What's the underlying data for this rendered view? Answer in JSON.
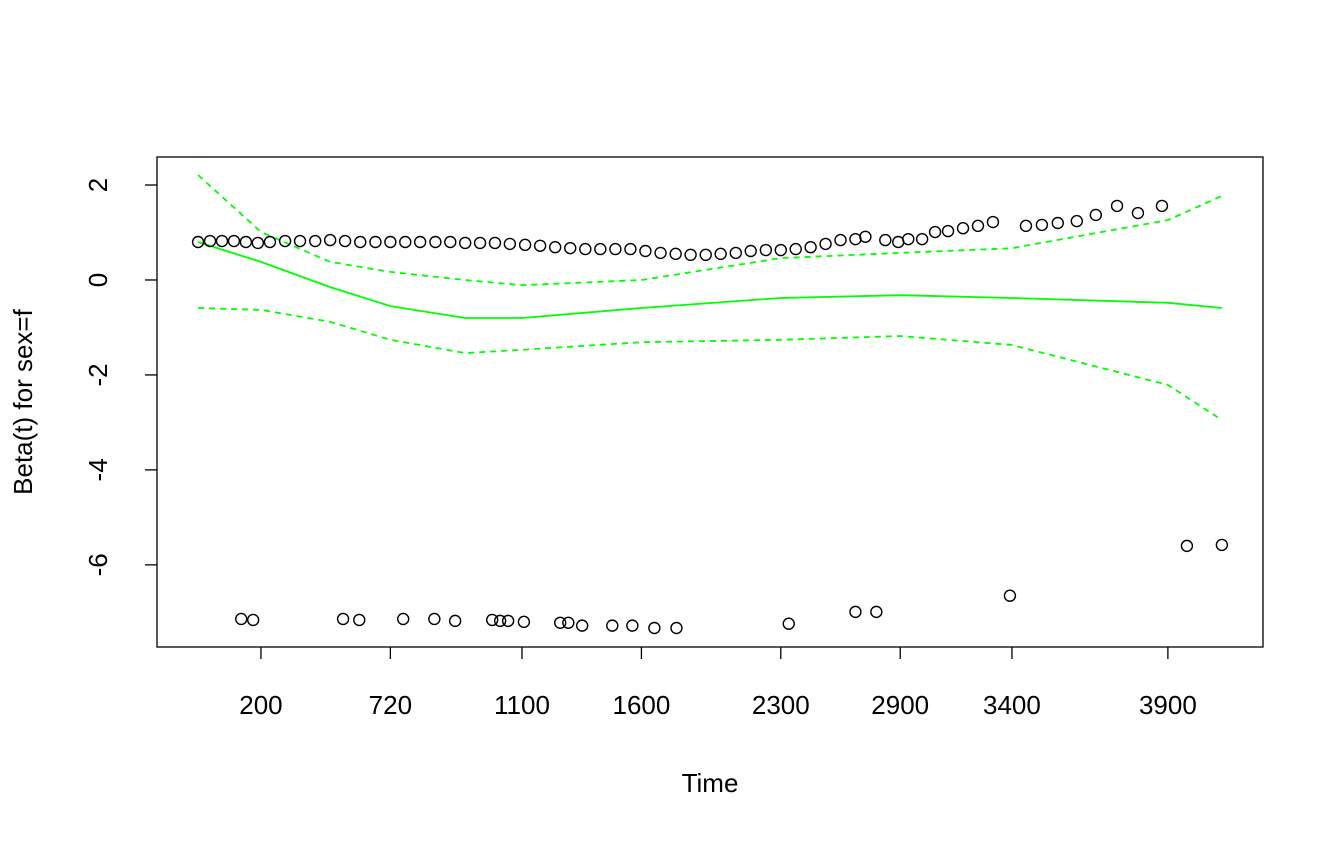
{
  "chart_data": {
    "type": "scatter",
    "x_label": "Time",
    "y_label": "Beta(t) for sex=f",
    "xlim": [
      0,
      4300
    ],
    "xticks": [
      200,
      720,
      1100,
      1600,
      2300,
      2900,
      3400,
      3900
    ],
    "ylim": [
      -7.73,
      2.59
    ],
    "yticks": [
      -6,
      -4,
      -2,
      0,
      2
    ],
    "grid": false,
    "point_color": "#000000",
    "x": [
      79,
      102,
      125,
      148,
      171,
      194,
      236,
      297,
      357,
      418,
      478,
      538,
      599,
      660,
      720,
      763,
      806,
      850,
      893,
      936,
      979,
      1022,
      1065,
      1113,
      1176,
      1239,
      1302,
      1365,
      1428,
      1491,
      1554,
      1620,
      1696,
      1772,
      1847,
      1923,
      1998,
      2074,
      2149,
      2225,
      2300,
      2375,
      2450,
      2525,
      2600,
      2675,
      2725,
      2825,
      2890,
      2936,
      2998,
      3056,
      3114,
      3181,
      3248,
      3315,
      3445,
      3496,
      3547,
      3608,
      3669,
      3737,
      3804,
      3881,
      162,
      185,
      530,
      595,
      757,
      847,
      907,
      1014,
      1037,
      1060,
      1108,
      1260,
      1294,
      1352,
      1478,
      1562,
      1665,
      1776,
      2340,
      2675,
      2780,
      3391,
      3980,
      4127
    ],
    "values": [
      0.8,
      0.82,
      0.82,
      0.82,
      0.8,
      0.78,
      0.8,
      0.82,
      0.82,
      0.82,
      0.84,
      0.82,
      0.8,
      0.8,
      0.8,
      0.8,
      0.8,
      0.8,
      0.8,
      0.78,
      0.78,
      0.78,
      0.76,
      0.74,
      0.72,
      0.69,
      0.67,
      0.65,
      0.65,
      0.65,
      0.65,
      0.61,
      0.57,
      0.55,
      0.53,
      0.53,
      0.55,
      0.57,
      0.61,
      0.63,
      0.63,
      0.65,
      0.69,
      0.76,
      0.84,
      0.86,
      0.91,
      0.84,
      0.8,
      0.86,
      0.86,
      1.01,
      1.03,
      1.09,
      1.14,
      1.22,
      1.14,
      1.16,
      1.2,
      1.24,
      1.37,
      1.56,
      1.41,
      1.56,
      -7.14,
      -7.16,
      -7.14,
      -7.16,
      -7.14,
      -7.14,
      -7.18,
      -7.16,
      -7.18,
      -7.18,
      -7.2,
      -7.22,
      -7.22,
      -7.28,
      -7.28,
      -7.28,
      -7.33,
      -7.33,
      -7.24,
      -6.99,
      -6.99,
      -6.65,
      -5.6,
      -5.58
    ],
    "line_x": [
      79,
      200,
      478,
      720,
      936,
      1100,
      1600,
      2300,
      2900,
      3400,
      3900,
      4127
    ],
    "lines": [
      {
        "color": "#00ff00",
        "dashed": false,
        "values": [
          0.8,
          0.38,
          -0.15,
          -0.55,
          -0.8,
          -0.8,
          -0.59,
          -0.38,
          -0.32,
          -0.38,
          -0.48,
          -0.59
        ]
      },
      {
        "color": "#00ff00",
        "dashed": true,
        "values": [
          2.21,
          1.01,
          0.38,
          0.17,
          0,
          -0.11,
          0,
          0.46,
          0.57,
          0.67,
          1.26,
          1.77
        ]
      },
      {
        "color": "#00ff00",
        "dashed": true,
        "values": [
          -0.59,
          -0.63,
          -0.88,
          -1.26,
          -1.54,
          -1.47,
          -1.31,
          -1.26,
          -1.18,
          -1.37,
          -2.21,
          -2.95
        ]
      }
    ]
  }
}
